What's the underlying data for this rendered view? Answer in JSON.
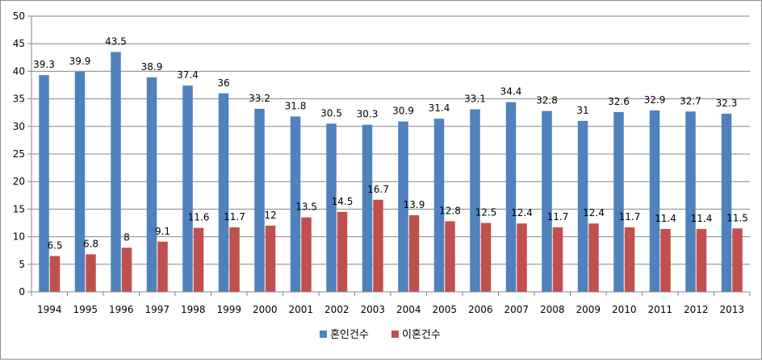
{
  "chart_data": {
    "type": "bar",
    "categories": [
      "1994",
      "1995",
      "1996",
      "1997",
      "1998",
      "1999",
      "2000",
      "2001",
      "2002",
      "2003",
      "2004",
      "2005",
      "2006",
      "2007",
      "2008",
      "2009",
      "2010",
      "2011",
      "2012",
      "2013"
    ],
    "series": [
      {
        "name": "혼인건수",
        "color": "#4f81bd",
        "values": [
          39.3,
          39.9,
          43.5,
          38.9,
          37.4,
          36,
          33.2,
          31.8,
          30.5,
          30.3,
          30.9,
          31.4,
          33.1,
          34.4,
          32.8,
          31,
          32.6,
          32.9,
          32.7,
          32.3
        ]
      },
      {
        "name": "이혼건수",
        "color": "#c0504d",
        "values": [
          6.5,
          6.8,
          8,
          9.1,
          11.6,
          11.7,
          12,
          13.5,
          14.5,
          16.7,
          13.9,
          12.8,
          12.5,
          12.4,
          11.7,
          12.4,
          11.7,
          11.4,
          11.4,
          11.5
        ]
      }
    ],
    "ylim": [
      0,
      50
    ],
    "yticks": [
      0,
      5,
      10,
      15,
      20,
      25,
      30,
      35,
      40,
      45,
      50
    ],
    "grid": true,
    "legend": "bottom-center"
  }
}
